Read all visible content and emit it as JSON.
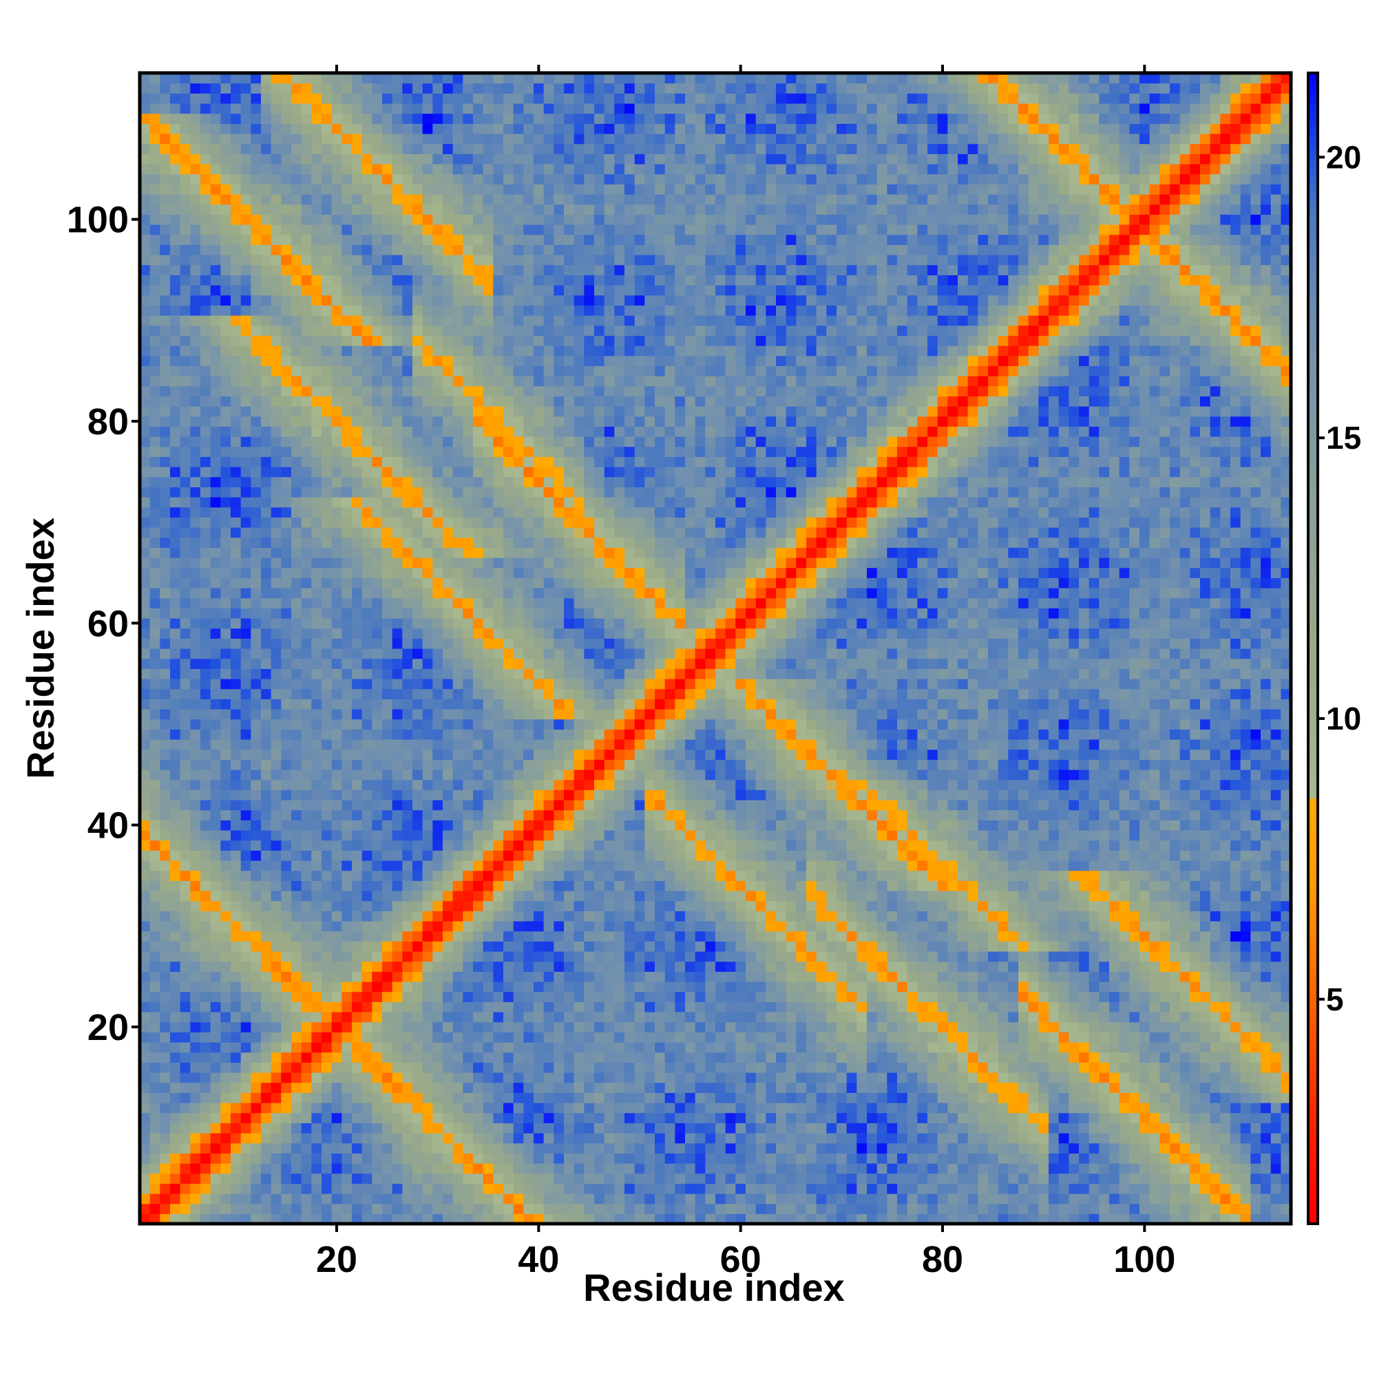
{
  "chart_data": {
    "type": "heatmap",
    "title": "",
    "xlabel": "Residue index",
    "ylabel": "Residue index",
    "n_residues": 114,
    "xlim": [
      1,
      114
    ],
    "ylim": [
      1,
      114
    ],
    "x_ticks": [
      20,
      40,
      60,
      80,
      100
    ],
    "y_ticks": [
      20,
      40,
      60,
      80,
      100
    ],
    "colorbar": {
      "range": [
        1,
        21.5
      ],
      "ticks": [
        5,
        10,
        15,
        20
      ],
      "stops": [
        {
          "value": 1.0,
          "color": "#ff0000"
        },
        {
          "value": 3.0,
          "color": "#ff2a00"
        },
        {
          "value": 5.0,
          "color": "#ff6600"
        },
        {
          "value": 7.0,
          "color": "#ff9900"
        },
        {
          "value": 8.5,
          "color": "#ffaa00"
        },
        {
          "value": 8.51,
          "color": "#a8b890"
        },
        {
          "value": 11.0,
          "color": "#9aaa88"
        },
        {
          "value": 14.0,
          "color": "#8aa09a"
        },
        {
          "value": 17.0,
          "color": "#6f8fb0"
        },
        {
          "value": 19.0,
          "color": "#4a78c0"
        },
        {
          "value": 20.0,
          "color": "#2050e0"
        },
        {
          "value": 21.5,
          "color": "#0000ff"
        }
      ]
    },
    "ranges": {
      "diagonal_band_halfwidth": 1.5,
      "contact_cutoff": 8.5,
      "max_distance": 21.5
    },
    "features": [
      {
        "type": "diagonal",
        "i": [
          1,
          114
        ],
        "j": [
          1,
          114
        ],
        "value": 1.0
      },
      {
        "type": "antidiagonal",
        "i": [
          1,
          17
        ],
        "j": [
          23,
          39
        ],
        "value": 6.5
      },
      {
        "type": "antidiagonal",
        "i": [
          15,
          33
        ],
        "j": [
          96,
          114
        ],
        "value": 7.0
      },
      {
        "type": "antidiagonal",
        "i": [
          36,
          52
        ],
        "j": [
          62,
          78
        ],
        "value": 6.5
      },
      {
        "type": "antidiagonal",
        "i": [
          53,
          70
        ],
        "j": [
          24,
          41
        ],
        "value": 7.0
      },
      {
        "type": "antidiagonal",
        "i": [
          69,
          88
        ],
        "j": [
          11,
          31
        ],
        "value": 7.0
      },
      {
        "type": "antidiagonal",
        "i": [
          90,
          108
        ],
        "j": [
          1,
          21
        ],
        "value": 6.5
      },
      {
        "type": "antidiagonal",
        "i": [
          99,
          113
        ],
        "j": [
          86,
          100
        ],
        "value": 6.5
      },
      {
        "type": "antidiagonal",
        "i": [
          30,
          42
        ],
        "j": [
          74,
          86
        ],
        "value": 7.5
      }
    ]
  }
}
